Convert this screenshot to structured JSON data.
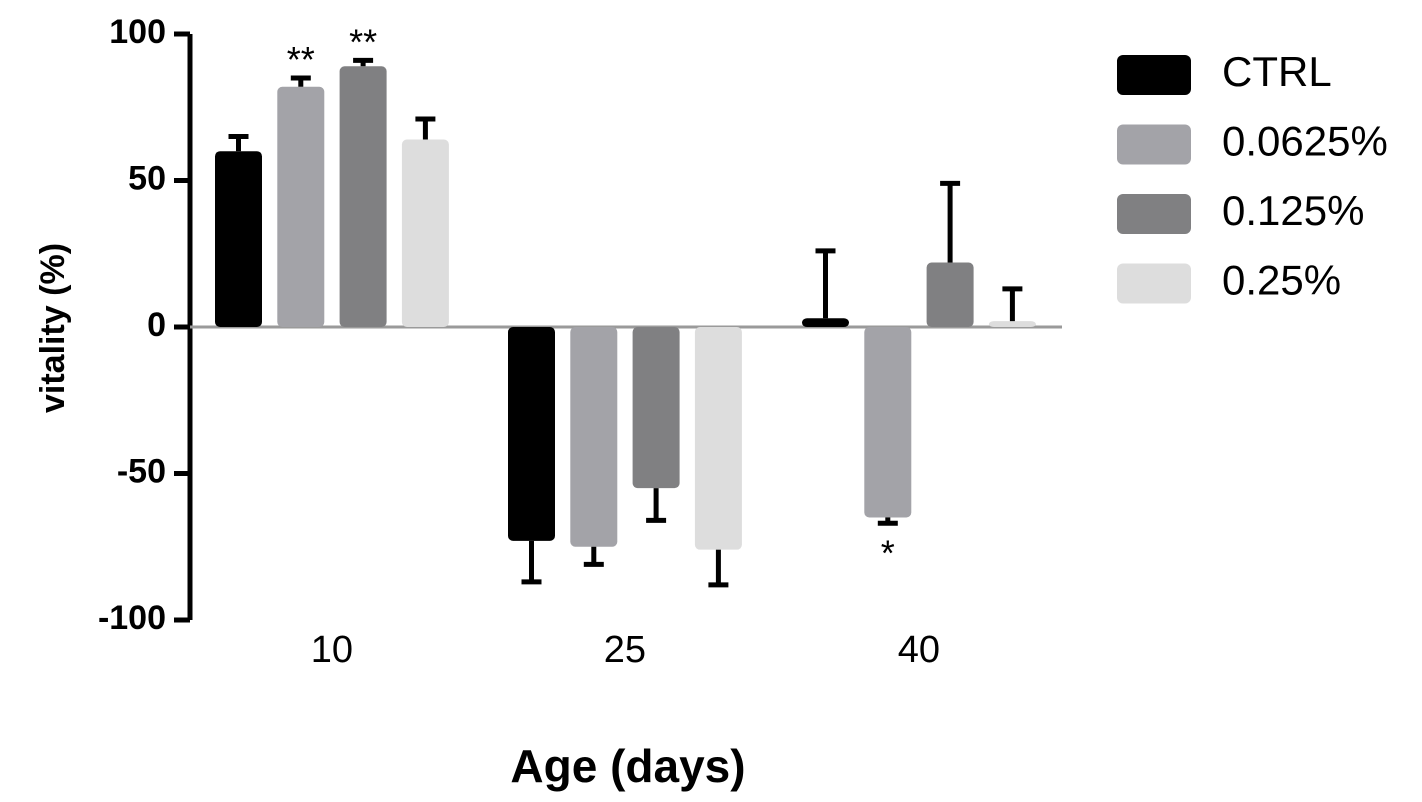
{
  "chart_data": {
    "type": "bar",
    "title": "",
    "xlabel": "Age (days)",
    "ylabel": "vitality (%)",
    "ylim": [
      -100,
      100
    ],
    "yticks": [
      100,
      50,
      0,
      -50,
      -100
    ],
    "ytick_labels": [
      "100",
      "50",
      "0",
      "-50",
      "-100"
    ],
    "categories": [
      "10",
      "25",
      "40"
    ],
    "series": [
      {
        "name": "CTRL",
        "color": "#000000",
        "values": [
          60,
          -73,
          3
        ],
        "errors": [
          5,
          14,
          23
        ],
        "significance": [
          "",
          "",
          ""
        ]
      },
      {
        "name": "0.0625%",
        "color": "#a3a3a8",
        "values": [
          82,
          -75,
          -65
        ],
        "errors": [
          3,
          6,
          2
        ],
        "significance": [
          "**",
          "",
          "*"
        ]
      },
      {
        "name": "0.125%",
        "color": "#808082",
        "values": [
          89,
          -55,
          22
        ],
        "errors": [
          2,
          11,
          27
        ],
        "significance": [
          "**",
          "",
          ""
        ]
      },
      {
        "name": "0.25%",
        "color": "#dddddd",
        "values": [
          64,
          -76,
          2
        ],
        "errors": [
          7,
          12,
          11
        ],
        "significance": [
          "",
          "",
          ""
        ]
      }
    ],
    "legend_position": "right",
    "grid": false
  }
}
